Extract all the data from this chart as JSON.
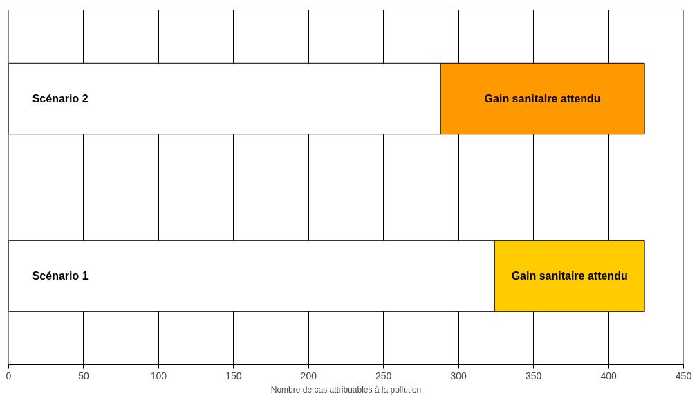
{
  "chart_data": {
    "type": "bar",
    "orientation": "horizontal",
    "stacked": true,
    "categories": [
      "Scénario 2",
      "Scénario 1"
    ],
    "series": [
      {
        "color": "#ffffff",
        "values": [
          288,
          324
        ]
      },
      {
        "name": "Gain sanitaire attendu",
        "colors": [
          "#ff9900",
          "#ffcc00"
        ],
        "values": [
          136,
          100
        ]
      }
    ],
    "xlabel": "Nombre de cas attribuables à la pollution",
    "xlim": [
      0,
      450
    ],
    "xticks": [
      0,
      50,
      100,
      150,
      200,
      250,
      300,
      350,
      400,
      450
    ],
    "grid": "x",
    "tick_labels": "x"
  }
}
